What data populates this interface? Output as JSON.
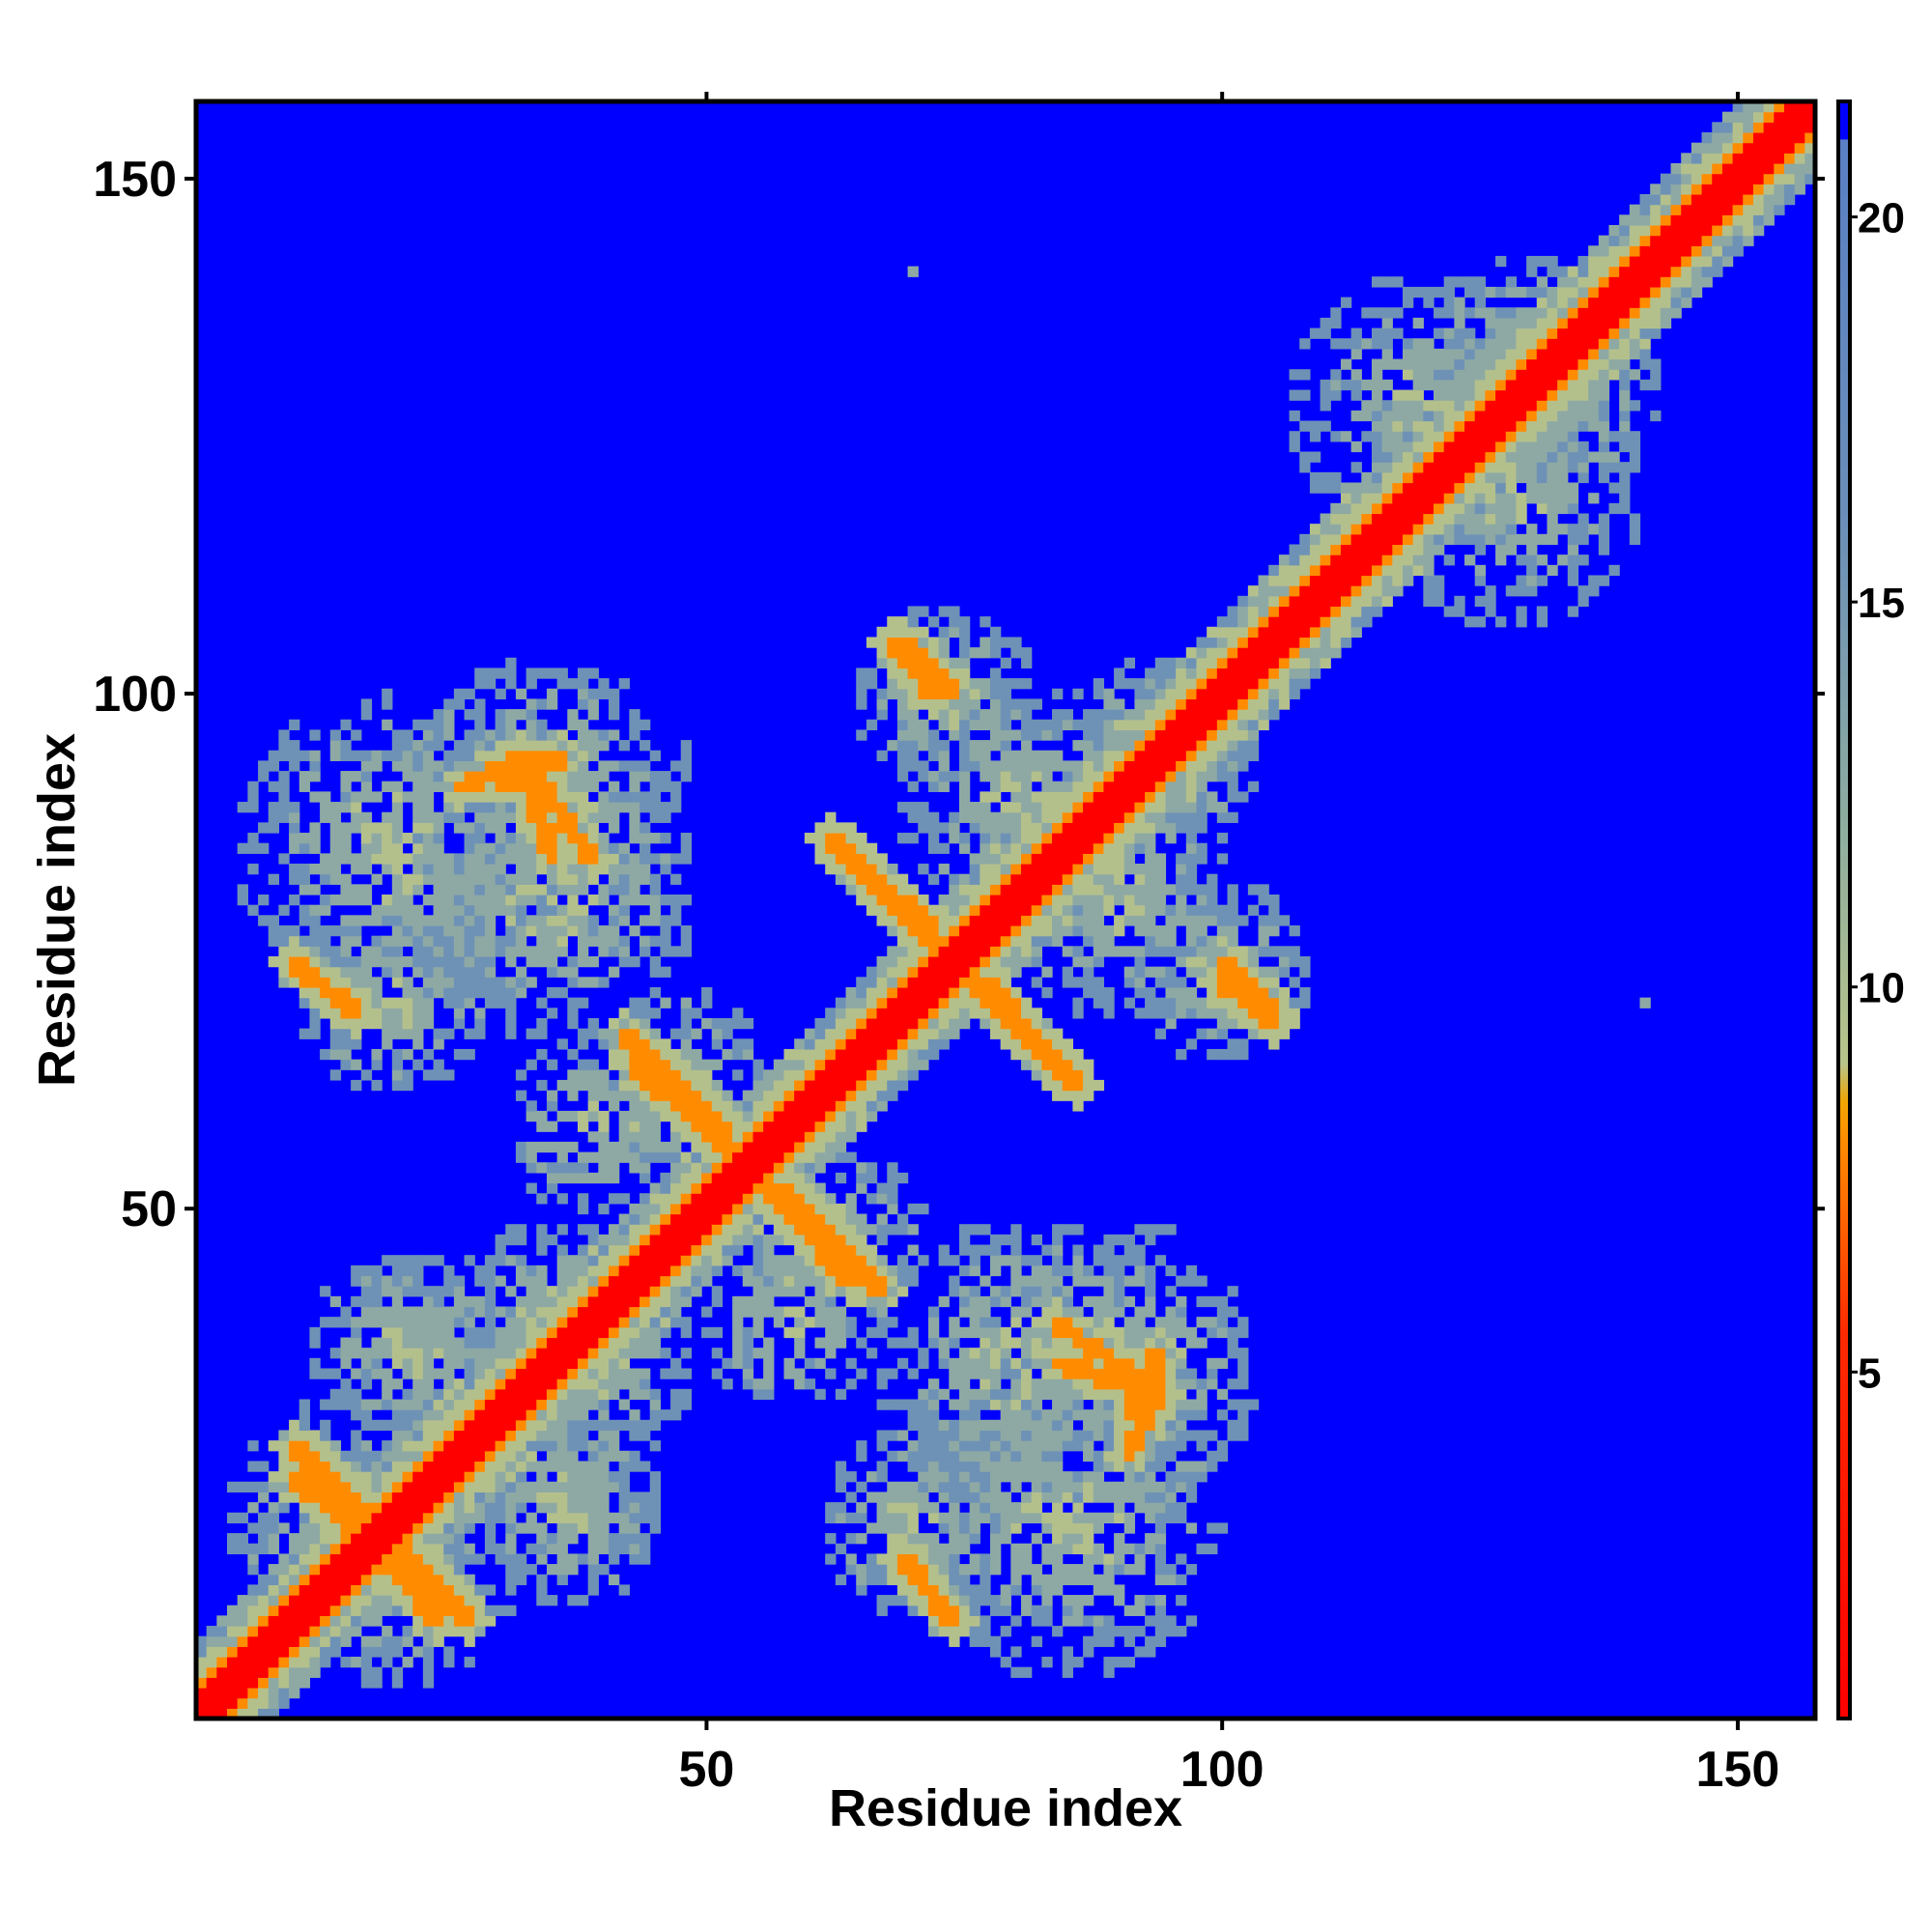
{
  "chart_data": {
    "type": "heatmap",
    "title": "",
    "xlabel": "Residue index",
    "ylabel": "Residue index",
    "xlim": [
      1,
      157
    ],
    "ylim": [
      1,
      157
    ],
    "x_ticks": [
      50,
      100,
      150
    ],
    "y_ticks": [
      50,
      100,
      150
    ],
    "colorbar": {
      "ticks": [
        5,
        10,
        15,
        20
      ],
      "range": [
        0.5,
        21.5
      ],
      "stops": [
        {
          "value": 0.5,
          "color": "#ff0000"
        },
        {
          "value": 5.5,
          "color": "#ff2a00"
        },
        {
          "value": 8.0,
          "color": "#ff8c00"
        },
        {
          "value": 8.5,
          "color": "#f2a500"
        },
        {
          "value": 9.0,
          "color": "#b8c48a"
        },
        {
          "value": 12.0,
          "color": "#8fae9f"
        },
        {
          "value": 16.0,
          "color": "#6b8fb8"
        },
        {
          "value": 21.0,
          "color": "#5a7fc4"
        },
        {
          "value": 21.01,
          "color": "#0000ff"
        },
        {
          "value": 21.5,
          "color": "#0000ff"
        }
      ]
    },
    "values_description": "Symmetric residue–residue distance map (Å). Diagonal ≈ 0–4 (red), near-diagonal band 5–9 (orange), contact regions 9–20 (green-grey/slate), background ≥ 21 (blue).",
    "regions": [
      {
        "cx": 15,
        "cy": 20,
        "rx": 12,
        "ry": 12
      },
      {
        "cx": 35,
        "cy": 40,
        "rx": 10,
        "ry": 9
      },
      {
        "cx": 20,
        "cy": 37,
        "rx": 9,
        "ry": 9
      },
      {
        "cx": 36,
        "cy": 23,
        "rx": 9,
        "ry": 9
      },
      {
        "cx": 20,
        "cy": 85,
        "rx": 16,
        "ry": 16
      },
      {
        "cx": 35,
        "cy": 80,
        "rx": 14,
        "ry": 14
      },
      {
        "cx": 40,
        "cy": 58,
        "rx": 10,
        "ry": 9
      },
      {
        "cx": 62,
        "cy": 48,
        "rx": 8,
        "ry": 10
      },
      {
        "cx": 70,
        "cy": 20,
        "rx": 10,
        "ry": 9
      },
      {
        "cx": 90,
        "cy": 35,
        "rx": 14,
        "ry": 14
      },
      {
        "cx": 80,
        "cy": 90,
        "rx": 12,
        "ry": 12
      },
      {
        "cx": 95,
        "cy": 95,
        "rx": 10,
        "ry": 9
      },
      {
        "cx": 100,
        "cy": 73,
        "rx": 9,
        "ry": 9
      },
      {
        "cx": 120,
        "cy": 127,
        "rx": 14,
        "ry": 14
      },
      {
        "cx": 130,
        "cy": 133,
        "rx": 10,
        "ry": 10
      }
    ],
    "streaks": [
      {
        "x0": 10,
        "y0": 24,
        "x1": 22,
        "y1": 14
      },
      {
        "x0": 27,
        "y0": 10,
        "x1": 19,
        "y1": 18
      },
      {
        "x0": 43,
        "y0": 64,
        "x1": 53,
        "y1": 55
      },
      {
        "x0": 57,
        "y0": 52,
        "x1": 67,
        "y1": 42
      },
      {
        "x0": 62,
        "y0": 86,
        "x1": 72,
        "y1": 77
      },
      {
        "x0": 76,
        "y0": 72,
        "x1": 86,
        "y1": 62
      },
      {
        "x0": 68,
        "y0": 105,
        "x1": 72,
        "y1": 100
      },
      {
        "x0": 100,
        "y0": 74,
        "x1": 105,
        "y1": 69
      },
      {
        "x0": 10,
        "y0": 74,
        "x1": 16,
        "y1": 69
      },
      {
        "x0": 74,
        "y0": 10,
        "x1": 69,
        "y1": 16
      },
      {
        "x0": 30,
        "y0": 91,
        "x1": 36,
        "y1": 94
      },
      {
        "x0": 32,
        "y0": 94,
        "x1": 39,
        "y1": 84
      },
      {
        "x0": 84,
        "y0": 35,
        "x1": 94,
        "y1": 32
      },
      {
        "x0": 91,
        "y0": 26,
        "x1": 94,
        "y1": 33
      }
    ],
    "outliers": [
      {
        "x": 70,
        "y": 141
      },
      {
        "x": 141,
        "y": 70
      }
    ]
  }
}
